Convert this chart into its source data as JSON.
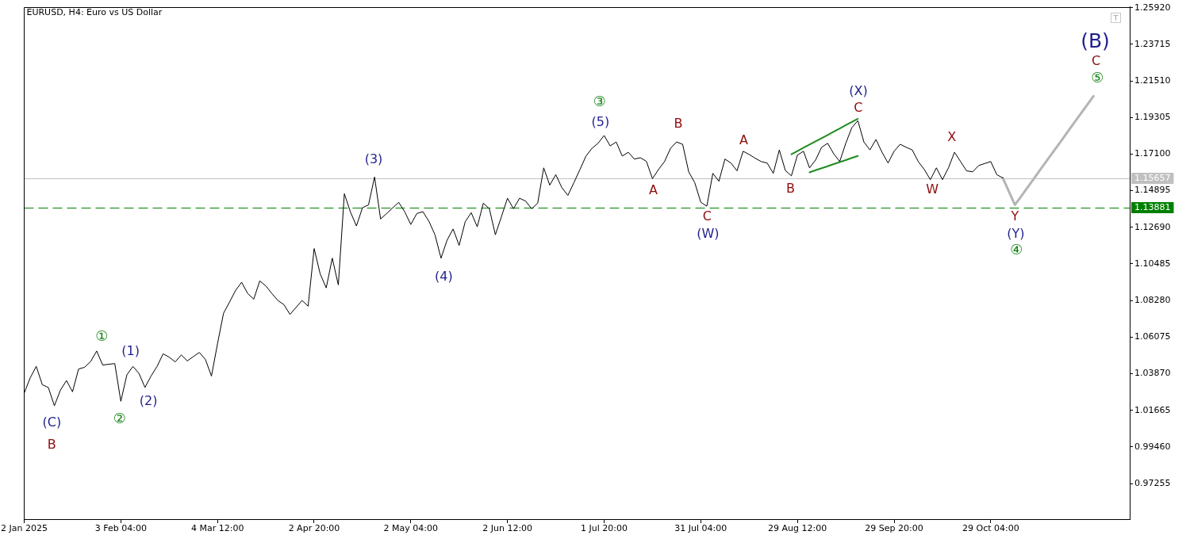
{
  "chart_data": {
    "type": "line",
    "title": "EURUSD, H4: Euro vs US Dollar",
    "categories": [
      "2 Jan 2025",
      null,
      null,
      null,
      null,
      null,
      null,
      null,
      null,
      null,
      null,
      null,
      null,
      null,
      null,
      null,
      "3 Feb 04:00",
      null,
      null,
      null,
      null,
      null,
      null,
      null,
      null,
      null,
      null,
      null,
      null,
      null,
      null,
      null,
      "4 Mar 12:00",
      null,
      null,
      null,
      null,
      null,
      null,
      null,
      null,
      null,
      null,
      null,
      null,
      null,
      null,
      null,
      "2 Apr 20:00",
      null,
      null,
      null,
      null,
      null,
      null,
      null,
      null,
      null,
      null,
      null,
      null,
      null,
      null,
      null,
      "2 May 04:00",
      null,
      null,
      null,
      null,
      null,
      null,
      null,
      null,
      null,
      null,
      null,
      null,
      null,
      null,
      null,
      "2 Jun 12:00",
      null,
      null,
      null,
      null,
      null,
      null,
      null,
      null,
      null,
      null,
      null,
      null,
      null,
      null,
      null,
      "1 Jul 20:00",
      null,
      null,
      null,
      null,
      null,
      null,
      null,
      null,
      null,
      null,
      null,
      null,
      null,
      null,
      null,
      "31 Jul 04:00",
      null,
      null,
      null,
      null,
      null,
      null,
      null,
      null,
      null,
      null,
      null,
      null,
      null,
      null,
      null,
      "29 Aug 12:00",
      null,
      null,
      null,
      null,
      null,
      null,
      null,
      null,
      null,
      null,
      null,
      null,
      null,
      null,
      null,
      "29 Sep 20:00",
      null,
      null,
      null,
      null,
      null,
      null,
      null,
      null,
      null,
      null,
      null,
      null,
      null,
      null,
      null,
      "29 Oct 04:00",
      null,
      null,
      null,
      null,
      null,
      null,
      null,
      null,
      null,
      null,
      null,
      null,
      null,
      null,
      null,
      null,
      null,
      null,
      null,
      null,
      null,
      null,
      null
    ],
    "series": [
      {
        "color": "#000000",
        "values": [
          1.027,
          1.0362,
          1.0431,
          1.0321,
          1.0304,
          1.0194,
          1.0288,
          1.0346,
          1.0278,
          1.0415,
          1.0426,
          1.046,
          1.0524,
          1.0439,
          1.0444,
          1.0448,
          1.0221,
          1.038,
          1.0431,
          1.0389,
          1.0304,
          1.0373,
          1.0431,
          1.0507,
          1.0487,
          1.0458,
          1.05,
          1.0464,
          1.049,
          1.0515,
          1.0473,
          1.0373,
          1.0567,
          1.0751,
          1.0819,
          1.0889,
          1.0938,
          1.087,
          1.0836,
          1.0946,
          1.0916,
          1.087,
          1.0828,
          1.0803,
          1.0744,
          1.0786,
          1.0828,
          1.0794,
          1.1141,
          1.0988,
          1.0904,
          1.1083,
          1.0922,
          1.1471,
          1.1362,
          1.1277,
          1.1387,
          1.1404,
          1.1572,
          1.1319,
          1.1352,
          1.1386,
          1.1419,
          1.1362,
          1.1286,
          1.1352,
          1.1363,
          1.1305,
          1.1224,
          1.1083,
          1.1191,
          1.1259,
          1.116,
          1.1302,
          1.1357,
          1.1272,
          1.1414,
          1.1381,
          1.1224,
          1.1333,
          1.1444,
          1.1381,
          1.1444,
          1.1427,
          1.1381,
          1.1414,
          1.1627,
          1.1523,
          1.1586,
          1.1508,
          1.1461,
          1.1538,
          1.1617,
          1.1698,
          1.1745,
          1.1775,
          1.1822,
          1.1759,
          1.1783,
          1.1698,
          1.1721,
          1.168,
          1.1688,
          1.1666,
          1.1562,
          1.1617,
          1.1665,
          1.1745,
          1.1783,
          1.1769,
          1.1603,
          1.1538,
          1.142,
          1.1396,
          1.1594,
          1.1546,
          1.168,
          1.1656,
          1.1609,
          1.1727,
          1.1708,
          1.1685,
          1.1665,
          1.1656,
          1.1594,
          1.1735,
          1.1611,
          1.1579,
          1.1704,
          1.1727,
          1.1627,
          1.1674,
          1.1751,
          1.1775,
          1.1712,
          1.1665,
          1.1775,
          1.1869,
          1.1911,
          1.1783,
          1.1735,
          1.1798,
          1.1721,
          1.1656,
          1.1727,
          1.1769,
          1.1751,
          1.1735,
          1.1665,
          1.1617,
          1.1556,
          1.1627,
          1.1556,
          1.1627,
          1.1721,
          1.1665,
          1.1609,
          1.1603,
          1.1641,
          1.1653,
          1.1665,
          1.1586,
          1.1566,
          null,
          null,
          null,
          null,
          null,
          null,
          null,
          null,
          null,
          null,
          null,
          null,
          null,
          null,
          null,
          null,
          null,
          null,
          null,
          null,
          null
        ]
      },
      {
        "color": "#b4b4b4",
        "values": [
          null,
          null,
          null,
          null,
          null,
          null,
          null,
          null,
          null,
          null,
          null,
          null,
          null,
          null,
          null,
          null,
          null,
          null,
          null,
          null,
          null,
          null,
          null,
          null,
          null,
          null,
          null,
          null,
          null,
          null,
          null,
          null,
          null,
          null,
          null,
          null,
          null,
          null,
          null,
          null,
          null,
          null,
          null,
          null,
          null,
          null,
          null,
          null,
          null,
          null,
          null,
          null,
          null,
          null,
          null,
          null,
          null,
          null,
          null,
          null,
          null,
          null,
          null,
          null,
          null,
          null,
          null,
          null,
          null,
          null,
          null,
          null,
          null,
          null,
          null,
          null,
          null,
          null,
          null,
          null,
          null,
          null,
          null,
          null,
          null,
          null,
          null,
          null,
          null,
          null,
          null,
          null,
          null,
          null,
          null,
          null,
          null,
          null,
          null,
          null,
          null,
          null,
          null,
          null,
          null,
          null,
          null,
          null,
          null,
          null,
          null,
          null,
          null,
          null,
          null,
          null,
          null,
          null,
          null,
          null,
          null,
          null,
          null,
          null,
          null,
          null,
          null,
          null,
          null,
          null,
          null,
          null,
          null,
          null,
          null,
          null,
          null,
          null,
          null,
          null,
          null,
          null,
          null,
          null,
          null,
          null,
          null,
          null,
          null,
          null,
          null,
          null,
          null,
          null,
          null,
          null,
          null,
          null,
          null,
          null,
          null,
          null,
          1.1566,
          1.1485,
          1.1404,
          1.1454,
          1.1505,
          1.1555,
          1.1606,
          1.1656,
          1.1706,
          1.1757,
          1.1807,
          1.1858,
          1.1908,
          1.1958,
          1.2009,
          1.2059,
          null,
          null,
          null,
          null,
          null,
          null
        ]
      },
      {
        "color": "#1e8c1e",
        "values": [
          null,
          null,
          null,
          null,
          null,
          null,
          null,
          null,
          null,
          null,
          null,
          null,
          null,
          null,
          null,
          null,
          null,
          null,
          null,
          null,
          null,
          null,
          null,
          null,
          null,
          null,
          null,
          null,
          null,
          null,
          null,
          null,
          null,
          null,
          null,
          null,
          null,
          null,
          null,
          null,
          null,
          null,
          null,
          null,
          null,
          null,
          null,
          null,
          null,
          null,
          null,
          null,
          null,
          null,
          null,
          null,
          null,
          null,
          null,
          null,
          null,
          null,
          null,
          null,
          null,
          null,
          null,
          null,
          null,
          null,
          null,
          null,
          null,
          null,
          null,
          null,
          null,
          null,
          null,
          null,
          null,
          null,
          null,
          null,
          null,
          null,
          null,
          null,
          null,
          null,
          null,
          null,
          null,
          null,
          null,
          null,
          null,
          null,
          null,
          null,
          null,
          null,
          null,
          null,
          null,
          null,
          null,
          null,
          null,
          null,
          null,
          null,
          null,
          null,
          null,
          null,
          null,
          null,
          null,
          null,
          null,
          null,
          null,
          null,
          null,
          null,
          null,
          1.1709,
          1.1728,
          1.1748,
          1.1767,
          1.1787,
          1.1806,
          1.1825,
          1.1845,
          1.1864,
          1.1884,
          1.1903,
          1.1922,
          null,
          null,
          null,
          null,
          null,
          null,
          null,
          null,
          null,
          null,
          null,
          null,
          null,
          null,
          null,
          null,
          null,
          null,
          null,
          null,
          null,
          null,
          null,
          null,
          null,
          null,
          null,
          null,
          null,
          null,
          null,
          null,
          null,
          null,
          null,
          null,
          null,
          null,
          null,
          null,
          null,
          null,
          null,
          null,
          null
        ]
      },
      {
        "color": "#1e8c1e",
        "values": [
          null,
          null,
          null,
          null,
          null,
          null,
          null,
          null,
          null,
          null,
          null,
          null,
          null,
          null,
          null,
          null,
          null,
          null,
          null,
          null,
          null,
          null,
          null,
          null,
          null,
          null,
          null,
          null,
          null,
          null,
          null,
          null,
          null,
          null,
          null,
          null,
          null,
          null,
          null,
          null,
          null,
          null,
          null,
          null,
          null,
          null,
          null,
          null,
          null,
          null,
          null,
          null,
          null,
          null,
          null,
          null,
          null,
          null,
          null,
          null,
          null,
          null,
          null,
          null,
          null,
          null,
          null,
          null,
          null,
          null,
          null,
          null,
          null,
          null,
          null,
          null,
          null,
          null,
          null,
          null,
          null,
          null,
          null,
          null,
          null,
          null,
          null,
          null,
          null,
          null,
          null,
          null,
          null,
          null,
          null,
          null,
          null,
          null,
          null,
          null,
          null,
          null,
          null,
          null,
          null,
          null,
          null,
          null,
          null,
          null,
          null,
          null,
          null,
          null,
          null,
          null,
          null,
          null,
          null,
          null,
          null,
          null,
          null,
          null,
          null,
          null,
          null,
          null,
          null,
          null,
          1.16,
          1.1613,
          1.1625,
          1.1637,
          1.165,
          1.1662,
          1.1674,
          1.1687,
          1.1699,
          null,
          null,
          null,
          null,
          null,
          null,
          null,
          null,
          null,
          null,
          null,
          null,
          null,
          null,
          null,
          null,
          null,
          null,
          null,
          null,
          null,
          null,
          null,
          null,
          null,
          null,
          null,
          null,
          null,
          null,
          null,
          null,
          null,
          null,
          null,
          null,
          null,
          null,
          null,
          null,
          null,
          null,
          null,
          null,
          null
        ]
      }
    ],
    "ylim": [
      0.9511,
      1.2597
    ],
    "yticks": [
      0.97255,
      {
        "value": 0.9946,
        "label": "0.99460"
      },
      1.01665,
      {
        "value": 1.0387,
        "label": "1.03870"
      },
      1.06075,
      {
        "value": 1.0828,
        "label": "1.08280"
      },
      1.10485,
      {
        "value": 1.1269,
        "label": "1.12690"
      },
      1.14895,
      {
        "value": 1.171,
        "label": "1.17100"
      },
      1.19305,
      {
        "value": 1.2151,
        "label": "1.21510"
      },
      1.23715,
      {
        "value": 1.2592,
        "label": "1.25920"
      }
    ],
    "ref_lines": [
      {
        "axis": "y",
        "value": 1.15657,
        "label": "1.15657",
        "color": "#c0c0c0",
        "line_style": "solid"
      },
      {
        "axis": "y",
        "value": 1.13881,
        "label": "1.13881",
        "color": "#008000",
        "line_style": "dashed"
      }
    ],
    "annotations": [
      "(C)",
      "B",
      "①",
      "(1)",
      "②",
      "(2)",
      "(3)",
      "(4)",
      "③",
      "(5)",
      "A",
      "B",
      "C",
      "(W)",
      "A",
      "B",
      "(X)",
      "C",
      "W",
      "X",
      "Y",
      "(Y)",
      "④",
      "(B)",
      "C",
      "⑤"
    ],
    "grid": false,
    "legend": false,
    "marker": "none"
  }
}
